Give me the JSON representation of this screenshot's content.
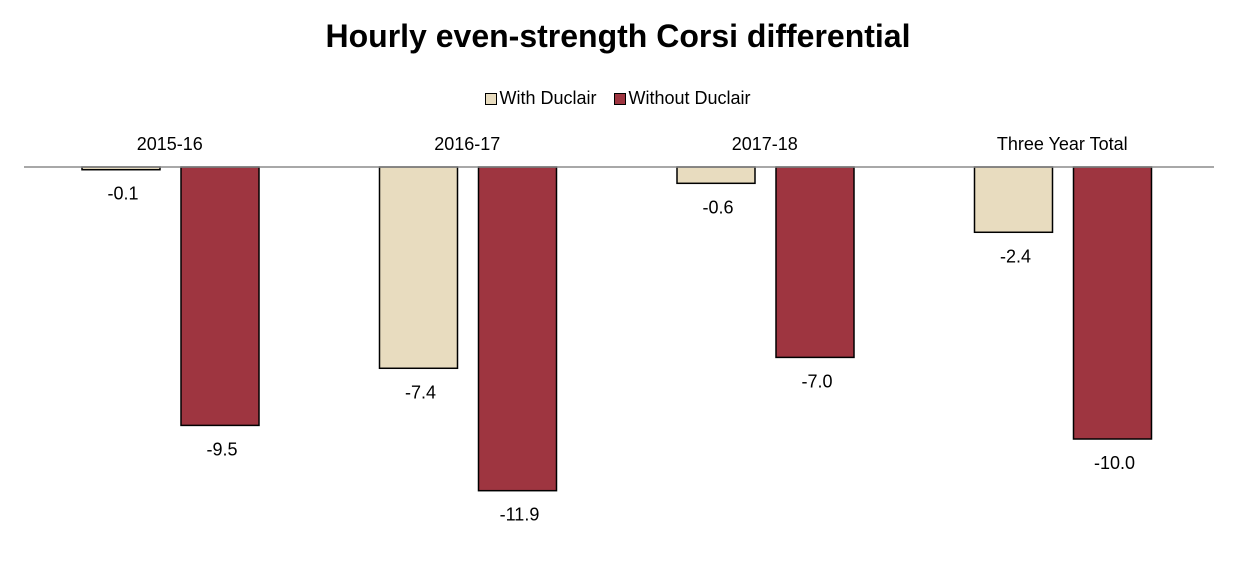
{
  "chart_data": {
    "type": "bar",
    "title": "Hourly even-strength Corsi differential",
    "xlabel": "",
    "ylabel": "",
    "categories": [
      "2015-16",
      "2016-17",
      "2017-18",
      "Three Year Total"
    ],
    "category_label_position": "top",
    "series": [
      {
        "name": "With Duclair",
        "color": "#e8dcbf",
        "values": [
          -0.1,
          -7.4,
          -0.6,
          -2.4
        ],
        "labels": [
          "-0.1",
          "-7.4",
          "-0.6",
          "-2.4"
        ]
      },
      {
        "name": "Without Duclair",
        "color": "#9e3540",
        "values": [
          -9.5,
          -11.9,
          -7.0,
          -10.0
        ],
        "labels": [
          "-9.5",
          "-11.9",
          "-7.0",
          "-10.0"
        ]
      }
    ],
    "ylim": [
      -12,
      0
    ],
    "grid": false,
    "legend_position": "top"
  }
}
